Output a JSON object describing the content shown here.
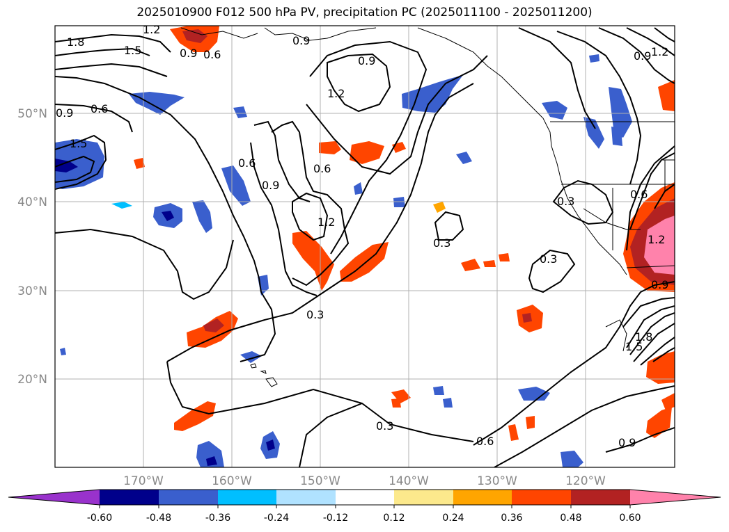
{
  "title": "2025010900 F012 500 hPa PV, precipitation PC (2025011100 - 2025011200)",
  "map": {
    "lat_labels": [
      "50°N",
      "40°N",
      "30°N",
      "20°N"
    ],
    "lon_labels": [
      "170°W",
      "160°W",
      "150°W",
      "140°W",
      "130°W",
      "120°W"
    ],
    "pv_contour_levels": [
      0.3,
      0.6,
      0.9,
      1.2,
      1.5,
      1.8
    ],
    "contour_labels": [
      "1.8",
      "1.2",
      "1.5",
      "0.9",
      "0.6",
      "0.9",
      "1.2",
      "0.9",
      "0.6",
      "1.5",
      "0.9",
      "0.6",
      "0.6",
      "0.9",
      "1.2",
      "0.9",
      "0.3",
      "0.3",
      "0.3",
      "0.6",
      "0.3",
      "0.3",
      "0.6",
      "1.2",
      "0.9",
      "1.8",
      "1.5",
      "1.2",
      "0.9"
    ]
  },
  "colorbar": {
    "tick_labels": [
      "-0.60",
      "-0.48",
      "-0.36",
      "-0.24",
      "-0.12",
      "0.12",
      "0.24",
      "0.36",
      "0.48",
      "0.60"
    ],
    "colors": [
      "#9932cc",
      "#00008b",
      "#3a5fcd",
      "#00bfff",
      "#b0e2ff",
      "#ffffff",
      "#fce98c",
      "#ffa500",
      "#ff4500",
      "#b22222",
      "#ff82ab"
    ]
  }
}
